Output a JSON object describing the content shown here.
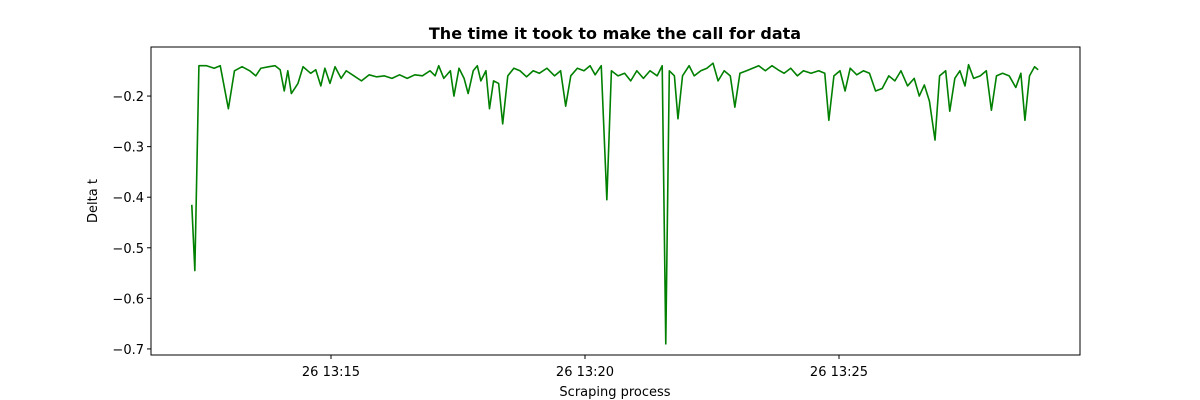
{
  "chart_data": {
    "type": "line",
    "title": "The time it took to make the call for data",
    "x_label": "Scraping process",
    "y_label": "Delta t",
    "color": "#008000",
    "xlim": [
      791.457,
      809.744
    ],
    "ylim": [
      -0.712,
      -0.103
    ],
    "xticks": [
      {
        "value": 795,
        "label": "26 13:15"
      },
      {
        "value": 800,
        "label": "26 13:20"
      },
      {
        "value": 805,
        "label": "26 13:25"
      }
    ],
    "yticks": [
      {
        "value": -0.2,
        "label": "−0.2"
      },
      {
        "value": -0.3,
        "label": "−0.3"
      },
      {
        "value": -0.4,
        "label": "−0.4"
      },
      {
        "value": -0.5,
        "label": "−0.5"
      },
      {
        "value": -0.6,
        "label": "−0.6"
      },
      {
        "value": -0.7,
        "label": "−0.7"
      }
    ],
    "x": [
      792.26,
      792.32,
      792.4,
      792.55,
      792.7,
      792.82,
      792.98,
      793.1,
      793.25,
      793.4,
      793.52,
      793.62,
      793.78,
      793.9,
      794.0,
      794.08,
      794.15,
      794.22,
      794.35,
      794.45,
      794.6,
      794.7,
      794.8,
      794.88,
      794.98,
      795.08,
      795.2,
      795.3,
      795.45,
      795.6,
      795.75,
      795.9,
      796.05,
      796.2,
      796.35,
      796.5,
      796.65,
      796.8,
      796.95,
      797.05,
      797.12,
      797.22,
      797.35,
      797.42,
      797.52,
      797.62,
      797.7,
      797.8,
      797.88,
      797.95,
      798.05,
      798.12,
      798.2,
      798.3,
      798.38,
      798.48,
      798.6,
      798.72,
      798.85,
      798.98,
      799.1,
      799.25,
      799.4,
      799.52,
      799.62,
      799.72,
      799.85,
      799.98,
      800.1,
      800.2,
      800.32,
      800.43,
      800.52,
      800.65,
      800.78,
      800.9,
      801.02,
      801.15,
      801.28,
      801.42,
      801.52,
      801.59,
      801.66,
      801.76,
      801.83,
      801.92,
      802.05,
      802.15,
      802.28,
      802.4,
      802.52,
      802.62,
      802.74,
      802.86,
      802.95,
      803.05,
      803.18,
      803.3,
      803.42,
      803.55,
      803.68,
      803.8,
      803.92,
      804.05,
      804.18,
      804.3,
      804.45,
      804.6,
      804.72,
      804.8,
      804.9,
      805.02,
      805.12,
      805.22,
      805.35,
      805.48,
      805.6,
      805.72,
      805.85,
      805.98,
      806.1,
      806.22,
      806.35,
      806.48,
      806.58,
      806.68,
      806.78,
      806.89,
      806.98,
      807.1,
      807.18,
      807.28,
      807.38,
      807.48,
      807.55,
      807.65,
      807.78,
      807.9,
      808.0,
      808.1,
      808.22,
      808.35,
      808.48,
      808.58,
      808.66,
      808.75,
      808.85,
      808.92
    ],
    "values": [
      -0.415,
      -0.545,
      -0.14,
      -0.14,
      -0.145,
      -0.14,
      -0.225,
      -0.15,
      -0.142,
      -0.15,
      -0.16,
      -0.145,
      -0.142,
      -0.14,
      -0.148,
      -0.19,
      -0.15,
      -0.195,
      -0.175,
      -0.142,
      -0.155,
      -0.148,
      -0.18,
      -0.145,
      -0.175,
      -0.142,
      -0.165,
      -0.15,
      -0.16,
      -0.17,
      -0.158,
      -0.162,
      -0.16,
      -0.165,
      -0.158,
      -0.165,
      -0.158,
      -0.16,
      -0.15,
      -0.16,
      -0.14,
      -0.165,
      -0.15,
      -0.2,
      -0.145,
      -0.165,
      -0.195,
      -0.15,
      -0.14,
      -0.17,
      -0.15,
      -0.225,
      -0.17,
      -0.175,
      -0.255,
      -0.16,
      -0.145,
      -0.15,
      -0.162,
      -0.15,
      -0.155,
      -0.145,
      -0.16,
      -0.15,
      -0.22,
      -0.16,
      -0.145,
      -0.15,
      -0.14,
      -0.158,
      -0.14,
      -0.405,
      -0.15,
      -0.16,
      -0.155,
      -0.17,
      -0.15,
      -0.165,
      -0.15,
      -0.16,
      -0.14,
      -0.69,
      -0.15,
      -0.16,
      -0.245,
      -0.16,
      -0.14,
      -0.16,
      -0.15,
      -0.145,
      -0.135,
      -0.17,
      -0.15,
      -0.16,
      -0.222,
      -0.155,
      -0.15,
      -0.145,
      -0.14,
      -0.15,
      -0.14,
      -0.148,
      -0.155,
      -0.145,
      -0.16,
      -0.15,
      -0.155,
      -0.15,
      -0.155,
      -0.248,
      -0.16,
      -0.15,
      -0.19,
      -0.145,
      -0.158,
      -0.15,
      -0.155,
      -0.19,
      -0.185,
      -0.16,
      -0.17,
      -0.15,
      -0.18,
      -0.165,
      -0.2,
      -0.178,
      -0.21,
      -0.287,
      -0.16,
      -0.15,
      -0.23,
      -0.165,
      -0.15,
      -0.18,
      -0.138,
      -0.165,
      -0.16,
      -0.15,
      -0.228,
      -0.16,
      -0.155,
      -0.16,
      -0.183,
      -0.155,
      -0.248,
      -0.16,
      -0.142,
      -0.148
    ]
  }
}
